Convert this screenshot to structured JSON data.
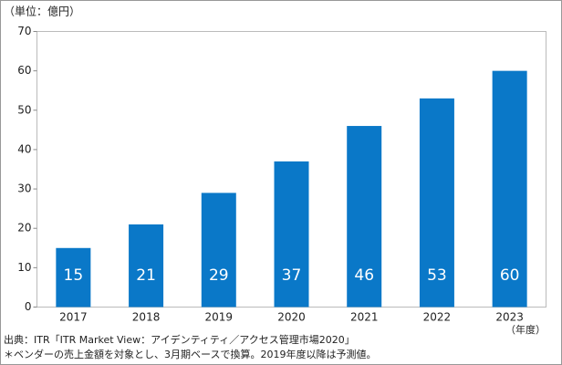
{
  "chart_data": {
    "type": "bar",
    "unit_label": "（単位：億円）",
    "x_unit_label": "（年度）",
    "source": "出典：ITR「ITR Market View：アイデンティティ／アクセス管理市場2020」",
    "note": "＊ベンダーの売上金額を対象とし、3月期ベースで換算。2019年度以降は予測値。",
    "categories": [
      "2017",
      "2018",
      "2019",
      "2020",
      "2021",
      "2022",
      "2023"
    ],
    "values": [
      15,
      21,
      29,
      37,
      46,
      53,
      60
    ],
    "color": "#0a78c8",
    "ylim": [
      0,
      70
    ],
    "yticks": [
      0,
      10,
      20,
      30,
      40,
      50,
      60,
      70
    ]
  }
}
